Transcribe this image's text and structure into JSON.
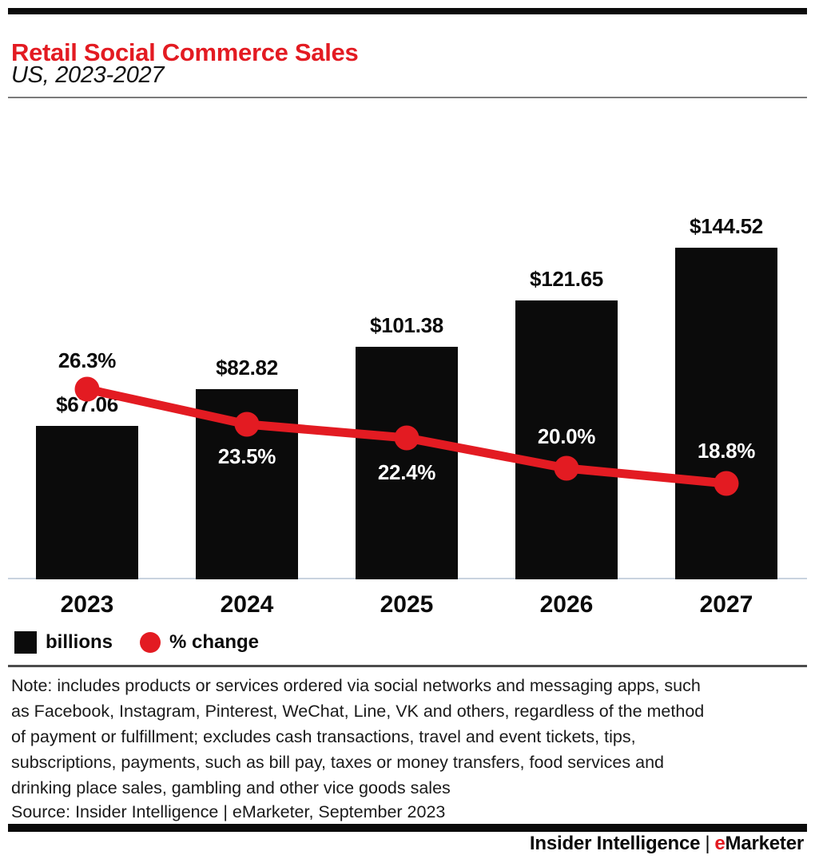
{
  "colors": {
    "accent_red": "#e31b22",
    "bar_black": "#0b0b0b",
    "axis_line": "#c9d3df",
    "pct_label_on_bar": "#ffffff",
    "pct_label_on_white": "#0b0b0b"
  },
  "header": {
    "title": "Retail Social Commerce Sales",
    "subtitle": "US, 2023-2027"
  },
  "chart_data": {
    "type": "bar",
    "title": "Retail Social Commerce Sales",
    "subtitle": "US, 2023-2027",
    "categories": [
      "2023",
      "2024",
      "2025",
      "2026",
      "2027"
    ],
    "series": [
      {
        "name": "billions",
        "type": "bar",
        "values": [
          67.06,
          82.82,
          101.38,
          121.65,
          144.52
        ],
        "labels": [
          "$67.06",
          "$82.82",
          "$101.38",
          "$121.65",
          "$144.52"
        ]
      },
      {
        "name": "% change",
        "type": "line",
        "values": [
          26.3,
          23.5,
          22.4,
          20.0,
          18.8
        ],
        "labels": [
          "26.3%",
          "23.5%",
          "22.4%",
          "20.0%",
          "18.8%"
        ]
      }
    ],
    "legend": [
      "billions",
      "% change"
    ],
    "legend_position": "bottom-left",
    "grid": false,
    "xlabel": "",
    "ylabel": ""
  },
  "note": "Note: includes products or services ordered via social networks and messaging apps, such\nas Facebook, Instagram, Pinterest, WeChat, Line, VK and others, regardless of the method\nof payment or fulfillment; excludes cash transactions, travel and event tickets, tips,\nsubscriptions, payments, such as bill pay, taxes or money transfers, food services and\ndrinking place sales, gambling and other vice goods sales",
  "source": "Source: Insider Intelligence | eMarketer, September 2023",
  "footer": {
    "brand_left": "Insider Intelligence",
    "separator": "|",
    "brand_e": "e",
    "brand_rest": "Marketer"
  }
}
